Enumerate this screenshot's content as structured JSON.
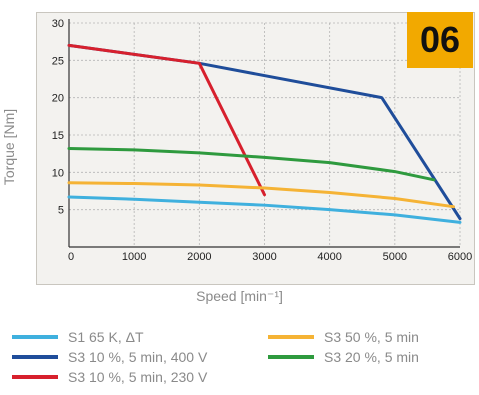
{
  "badge": "06",
  "chart_data": {
    "type": "line",
    "xlabel": "Speed [min⁻¹]",
    "ylabel": "Torque [Nm]",
    "xlim": [
      0,
      6000
    ],
    "ylim": [
      0,
      30
    ],
    "x_ticks": [
      0,
      1000,
      2000,
      3000,
      4000,
      5000,
      6000
    ],
    "y_ticks": [
      5,
      10,
      15,
      20,
      25,
      30
    ],
    "grid": true,
    "legend_position": "bottom",
    "series": [
      {
        "name": "S1 65 K, ΔT",
        "color": "#3fb0de",
        "x": [
          0,
          1000,
          2000,
          3000,
          4000,
          5000,
          6000
        ],
        "y": [
          6.7,
          6.4,
          6.0,
          5.6,
          5.0,
          4.3,
          3.3
        ]
      },
      {
        "name": "S3 10 %, 5 min, 400 V",
        "color": "#1f4d9a",
        "x": [
          0,
          2000,
          4800,
          6000
        ],
        "y": [
          27.0,
          24.6,
          20.0,
          3.8
        ]
      },
      {
        "name": "S3 10 %, 5 min, 230 V",
        "color": "#d7202d",
        "x": [
          0,
          2000,
          3000
        ],
        "y": [
          27.0,
          24.6,
          7.0
        ]
      },
      {
        "name": "S3 50 %, 5 min",
        "color": "#f5b335",
        "x": [
          0,
          1000,
          2000,
          3000,
          4000,
          5000,
          5900
        ],
        "y": [
          8.6,
          8.5,
          8.3,
          7.9,
          7.3,
          6.5,
          5.4
        ]
      },
      {
        "name": "S3 20 %, 5 min",
        "color": "#2e9a3e",
        "x": [
          0,
          1000,
          2000,
          3000,
          4000,
          5000,
          5600
        ],
        "y": [
          13.2,
          13.0,
          12.6,
          12.0,
          11.3,
          10.1,
          9.0
        ]
      }
    ]
  }
}
